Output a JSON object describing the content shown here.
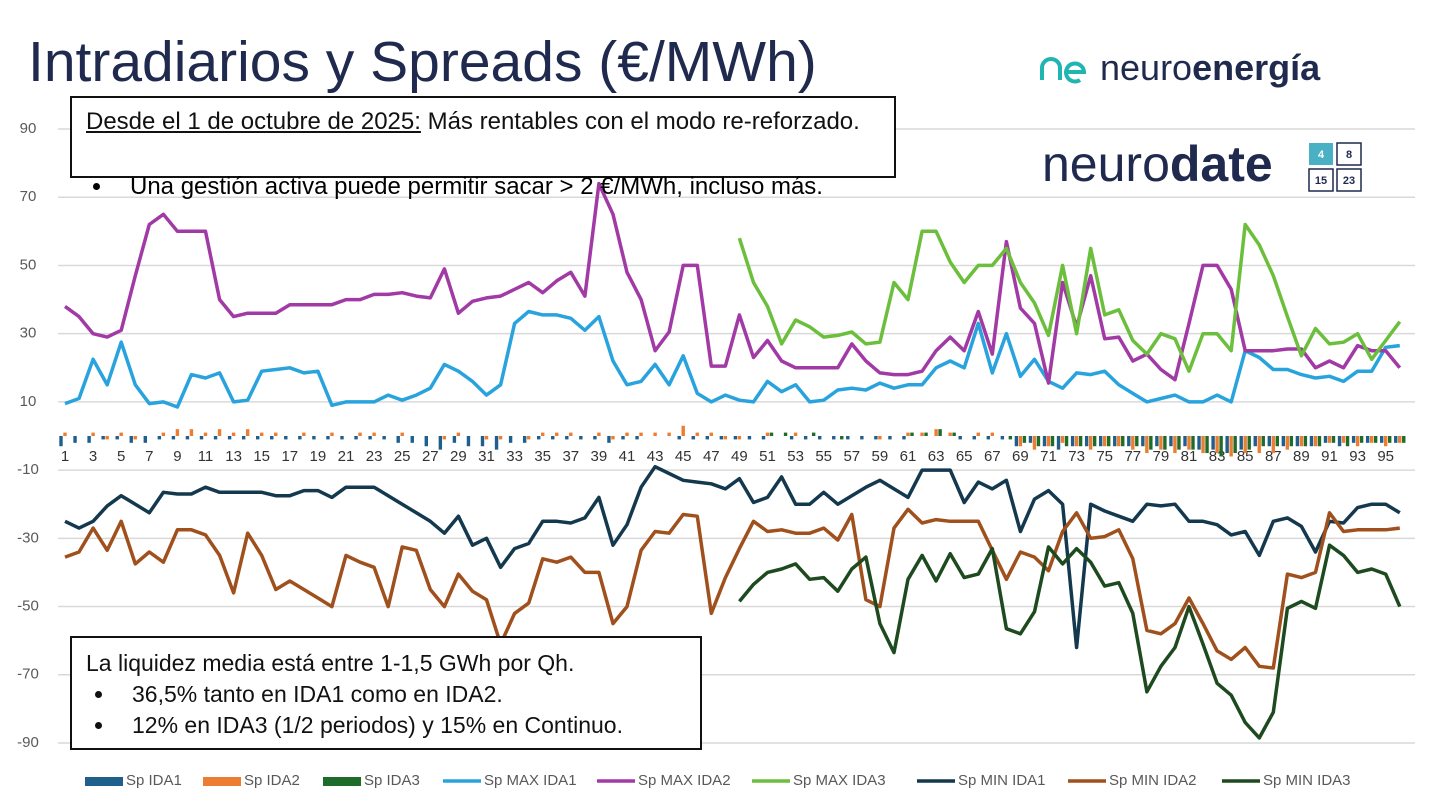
{
  "chart_data": {
    "type": "combo",
    "title": "Intradiarios y Spreads (€/MWh)",
    "categories": [
      "1",
      null,
      "3",
      null,
      "5",
      null,
      "7",
      null,
      "9",
      null,
      "11",
      null,
      "13",
      null,
      "15",
      null,
      "17",
      null,
      "19",
      null,
      "21",
      null,
      "23",
      null,
      "25",
      null,
      "27",
      null,
      "29",
      null,
      "31",
      null,
      "33",
      null,
      "35",
      null,
      "37",
      null,
      "39",
      null,
      "41",
      null,
      "43",
      null,
      "45",
      null,
      "47",
      null,
      "49",
      null,
      "51",
      null,
      "53",
      null,
      "55",
      null,
      "57",
      null,
      "59",
      null,
      "61",
      null,
      "63",
      null,
      "65",
      null,
      "67",
      null,
      "69",
      null,
      "71",
      null,
      "73",
      null,
      "75",
      null,
      "77",
      null,
      "79",
      null,
      "81",
      null,
      "83",
      null,
      "85",
      null,
      "87",
      null,
      "89",
      null,
      "91",
      null,
      "93",
      null,
      "95",
      null
    ],
    "ylim": [
      -90,
      90
    ],
    "yticks": [
      90,
      70,
      50,
      30,
      10,
      -10,
      -30,
      -50,
      -70,
      -90
    ],
    "grid": true,
    "legend": "bottom",
    "series": [
      {
        "name": "Sp IDA1",
        "type": "bar",
        "color": "#1f5f8b",
        "values": [
          -3,
          -2,
          -2,
          -1,
          -1,
          -2,
          -2,
          -1,
          -1,
          -1,
          -1,
          -1,
          -1,
          -1,
          -1,
          -1,
          -1,
          -1,
          -1,
          -1,
          -1,
          -1,
          -1,
          -1,
          -2,
          -2,
          -3,
          -4,
          -2,
          -3,
          -3,
          -4,
          -2,
          -2,
          -1,
          -1,
          -1,
          -1,
          -1,
          -2,
          -1,
          -1,
          0,
          0,
          -1,
          -1,
          -1,
          -1,
          -1,
          -1,
          -1,
          0,
          -1,
          -1,
          -1,
          -1,
          -1,
          -1,
          -1,
          -1,
          -1,
          0,
          0,
          0,
          -1,
          -1,
          -1,
          -1,
          -3,
          -2,
          -3,
          -4,
          -3,
          -3,
          -3,
          -3,
          -3,
          -3,
          -3,
          -3,
          -3,
          -4,
          -4,
          -5,
          -4,
          -3,
          -3,
          -3,
          -3,
          -3,
          -2,
          -3,
          -2,
          -2,
          -2,
          -2
        ]
      },
      {
        "name": "Sp IDA2",
        "type": "bar",
        "color": "#ed7d31",
        "values": [
          1,
          0,
          1,
          -1,
          1,
          -1,
          0,
          1,
          2,
          2,
          1,
          2,
          1,
          2,
          1,
          1,
          0,
          1,
          0,
          1,
          0,
          1,
          1,
          0,
          1,
          0,
          0,
          -1,
          1,
          0,
          -1,
          -1,
          0,
          -1,
          1,
          1,
          1,
          0,
          1,
          -1,
          1,
          1,
          1,
          1,
          3,
          1,
          1,
          -1,
          -1,
          0,
          1,
          0,
          1,
          0,
          0,
          0,
          0,
          0,
          -1,
          0,
          1,
          1,
          2,
          1,
          0,
          1,
          1,
          0,
          -3,
          -4,
          -3,
          -2,
          -3,
          -4,
          -3,
          -3,
          -4,
          -5,
          -4,
          -5,
          -4,
          -5,
          -5,
          -6,
          -5,
          -5,
          -5,
          -4,
          -3,
          -3,
          -2,
          -2,
          -3,
          -2,
          -3,
          -2
        ]
      },
      {
        "name": "Sp IDA3",
        "type": "bar",
        "color": "#1e6b2a",
        "values": [
          null,
          null,
          null,
          null,
          null,
          null,
          null,
          null,
          null,
          null,
          null,
          null,
          null,
          null,
          null,
          null,
          null,
          null,
          null,
          null,
          null,
          null,
          null,
          null,
          null,
          null,
          null,
          null,
          null,
          null,
          null,
          null,
          null,
          null,
          null,
          null,
          null,
          null,
          null,
          null,
          null,
          null,
          null,
          null,
          null,
          null,
          null,
          null,
          0,
          0,
          1,
          1,
          0,
          1,
          0,
          -1,
          0,
          0,
          0,
          0,
          1,
          1,
          2,
          1,
          0,
          0,
          0,
          -1,
          -2,
          -3,
          -3,
          -3,
          -3,
          -3,
          -3,
          -3,
          -3,
          -4,
          -4,
          -4,
          -4,
          -5,
          -6,
          -5,
          -4,
          -3,
          -3,
          -3,
          -3,
          -3,
          -2,
          -3,
          -2,
          -2,
          -2,
          -2
        ]
      },
      {
        "name": "Sp MAX IDA1",
        "type": "line",
        "color": "#29a3dd",
        "values": [
          9.5,
          11,
          22.5,
          15,
          27.5,
          15,
          9.5,
          10,
          8.5,
          18,
          17,
          18.5,
          10,
          10.5,
          19,
          19.5,
          20,
          18.5,
          19,
          9,
          10,
          10,
          10,
          12,
          10.5,
          12,
          14,
          21,
          19,
          16,
          12,
          15,
          33,
          36.5,
          35.5,
          35.5,
          34.5,
          31,
          35,
          22,
          15,
          16,
          21,
          15,
          23.5,
          12.5,
          10,
          12,
          10.5,
          10,
          16,
          13,
          15,
          10,
          10.5,
          13.5,
          14,
          13.5,
          15.5,
          14,
          15,
          15,
          20,
          22,
          20,
          33,
          18.5,
          30,
          17.5,
          22.5,
          16,
          14,
          18.5,
          18,
          19,
          15,
          12.5,
          10,
          11,
          12,
          10,
          10,
          12,
          10,
          25,
          23,
          19.5,
          19.5,
          18,
          17,
          17.5,
          16,
          19,
          19,
          26,
          26.5
        ]
      },
      {
        "name": "Sp MAX IDA2",
        "type": "line",
        "color": "#a23aa6",
        "values": [
          38,
          35,
          30,
          29,
          31,
          47,
          62,
          65,
          60,
          60,
          60,
          40,
          35,
          36,
          36,
          36,
          38.5,
          38.5,
          38.5,
          38.5,
          40,
          40,
          41.5,
          41.5,
          42,
          41,
          40.5,
          49,
          36,
          39.5,
          40.5,
          41,
          43,
          45,
          42,
          45.5,
          48,
          41,
          74,
          65,
          48,
          40,
          25,
          30.5,
          50,
          50,
          20.5,
          20.5,
          35.5,
          23,
          28,
          22,
          20,
          20,
          20,
          20,
          27,
          22,
          18.5,
          18,
          18,
          19,
          25,
          29,
          25,
          36.5,
          24,
          57,
          37.5,
          33,
          15.5,
          45,
          32,
          47,
          28.5,
          29,
          22,
          24,
          19.5,
          16.5,
          33,
          50,
          50,
          43,
          25,
          25,
          25,
          25.5,
          25.5,
          20,
          22,
          20,
          26.5,
          25,
          25,
          20
        ]
      },
      {
        "name": "Sp MAX IDA3",
        "type": "line",
        "color": "#6cbf3c",
        "values": [
          null,
          null,
          null,
          null,
          null,
          null,
          null,
          null,
          null,
          null,
          null,
          null,
          null,
          null,
          null,
          null,
          null,
          null,
          null,
          null,
          null,
          null,
          null,
          null,
          null,
          null,
          null,
          null,
          null,
          null,
          null,
          null,
          null,
          null,
          null,
          null,
          null,
          null,
          null,
          null,
          null,
          null,
          null,
          null,
          null,
          null,
          null,
          null,
          58,
          45,
          38,
          27,
          34,
          32,
          29,
          29.5,
          30.5,
          27,
          27.5,
          45,
          40,
          60,
          60,
          51,
          45,
          50,
          50,
          55,
          45,
          39,
          29.5,
          50,
          30,
          55,
          35.5,
          37,
          28,
          24,
          30,
          28.5,
          19,
          30,
          30,
          25,
          62,
          56,
          47,
          35,
          23.5,
          31.5,
          27,
          27.5,
          30,
          22.5,
          28,
          33.5
        ]
      },
      {
        "name": "Sp MIN IDA1",
        "type": "line",
        "color": "#14394f",
        "values": [
          -25,
          -27,
          -25,
          -20.5,
          -17.5,
          -20,
          -22.5,
          -16.5,
          -17,
          -17,
          -15,
          -16.5,
          -16.5,
          -16.5,
          -16.5,
          -17.5,
          -17.5,
          -16,
          -16,
          -18,
          -15,
          -15,
          -15,
          -17.5,
          -20,
          -22.5,
          -25,
          -28.5,
          -23.5,
          -32,
          -30,
          -38.5,
          -33,
          -31.5,
          -25,
          -25,
          -25.5,
          -24,
          -18,
          -32,
          -26,
          -15,
          -9,
          -11,
          -13,
          -13.5,
          -14,
          -15.5,
          -12.5,
          -19.5,
          -18,
          -12,
          -20,
          -20,
          -16.5,
          -20,
          -17.5,
          -15,
          -13,
          -15.5,
          -18,
          -10,
          -10,
          -10,
          -19.5,
          -13.5,
          -15.5,
          -13,
          -28,
          -18.5,
          -16,
          -20,
          -62,
          -20,
          -22,
          -23.5,
          -25,
          -20,
          -20.5,
          -20,
          -25,
          -25,
          -26,
          -29,
          -28,
          -35,
          -25,
          -24,
          -26.5,
          -34,
          -25,
          -25.5,
          -21,
          -20,
          -20,
          -22.5
        ]
      },
      {
        "name": "Sp MIN IDA2",
        "type": "line",
        "color": "#a0501c",
        "values": [
          -35.5,
          -34,
          -27,
          -33.5,
          -25,
          -37.5,
          -34,
          -37,
          -27.5,
          -27.5,
          -29,
          -35,
          -46,
          -28.5,
          -35,
          -45,
          -42.5,
          -45,
          -47.5,
          -50,
          -35,
          -37,
          -38.5,
          -50,
          -32.5,
          -33.5,
          -45,
          -50,
          -40.5,
          -45.5,
          -48,
          -61,
          -52,
          -49,
          -36,
          -37,
          -35.5,
          -40,
          -40,
          -55,
          -50,
          -33.5,
          -28,
          -28.5,
          -23,
          -23.5,
          -52,
          -41.5,
          -33,
          -25,
          -28,
          -27.5,
          -28.5,
          -28.5,
          -27,
          -30.5,
          -23,
          -48,
          -50,
          -27,
          -21.5,
          -25.5,
          -24.5,
          -25,
          -25,
          -25,
          -33.5,
          -42,
          -34,
          -35.5,
          -39.5,
          -28,
          -22.5,
          -30,
          -29.5,
          -27.5,
          -36,
          -57,
          -58,
          -55,
          -47.5,
          -55,
          -63,
          -65.5,
          -62,
          -67.5,
          -68,
          -40.5,
          -41.5,
          -40,
          -22.5,
          -28,
          -27.5,
          -27.5,
          -27.5,
          -27
        ]
      },
      {
        "name": "Sp MIN IDA3",
        "type": "line",
        "color": "#1d4a1f",
        "values": [
          null,
          null,
          null,
          null,
          null,
          null,
          null,
          null,
          null,
          null,
          null,
          null,
          null,
          null,
          null,
          null,
          null,
          null,
          null,
          null,
          null,
          null,
          null,
          null,
          null,
          null,
          null,
          null,
          null,
          null,
          null,
          null,
          null,
          null,
          null,
          null,
          null,
          null,
          null,
          null,
          null,
          null,
          null,
          null,
          null,
          null,
          null,
          null,
          -48.5,
          -43.5,
          -40,
          -39,
          -37.5,
          -42,
          -41.5,
          -45.5,
          -39,
          -35.5,
          -55,
          -63.5,
          -42,
          -35,
          -42.5,
          -34.5,
          -41.5,
          -40.5,
          -33,
          -56.5,
          -58,
          -51.5,
          -32.5,
          -37.5,
          -33,
          -37,
          -44,
          -43,
          -52,
          -75,
          -67.5,
          -62,
          -50,
          -61,
          -72.5,
          -76,
          -84,
          -88.5,
          -81,
          -50.5,
          -48.5,
          -50.5,
          -32,
          -35,
          -40,
          -39,
          -40.5,
          -50
        ]
      }
    ]
  },
  "notes": [
    {
      "lead": "Desde el 1 de octubre de 2025:",
      "text": "Más rentables con el modo re-reforzado.",
      "bullets": [
        "Una gestión activa puede permitir sacar > 2 €/MWh, incluso más."
      ]
    },
    {
      "text": "La liquidez media está entre 1-1,5 GWh por Qh.",
      "bullets": [
        "36,5% tanto en IDA1 como en IDA2.",
        "12% en IDA3 (1/2 periodos) y 15% en Continuo."
      ]
    }
  ],
  "logos": {
    "brand_light": "neuro",
    "brand_bold": "energía",
    "date_light": "neuro",
    "date_bold": "date",
    "calendar": [
      "4",
      "8",
      "15",
      "23"
    ]
  }
}
